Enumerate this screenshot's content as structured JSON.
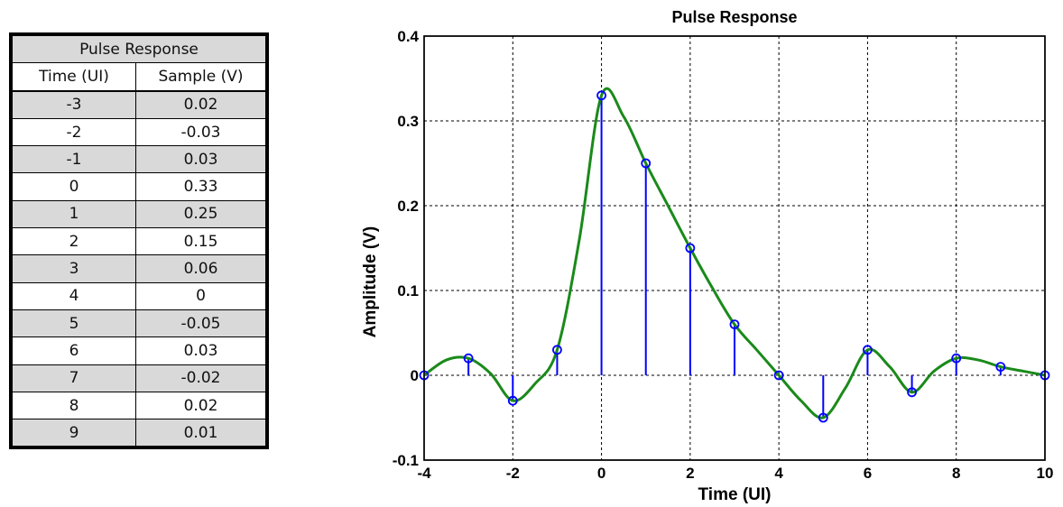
{
  "table": {
    "title": "Pulse Response",
    "col_time": "Time (UI)",
    "col_sample": "Sample (V)",
    "rows": [
      {
        "time": "-3",
        "sample": "0.02"
      },
      {
        "time": "-2",
        "sample": "-0.03"
      },
      {
        "time": "-1",
        "sample": "0.03"
      },
      {
        "time": "0",
        "sample": "0.33"
      },
      {
        "time": "1",
        "sample": "0.25"
      },
      {
        "time": "2",
        "sample": "0.15"
      },
      {
        "time": "3",
        "sample": "0.06"
      },
      {
        "time": "4",
        "sample": "0"
      },
      {
        "time": "5",
        "sample": "-0.05"
      },
      {
        "time": "6",
        "sample": "0.03"
      },
      {
        "time": "7",
        "sample": "-0.02"
      },
      {
        "time": "8",
        "sample": "0.02"
      },
      {
        "time": "9",
        "sample": "0.01"
      }
    ]
  },
  "chart_data": {
    "type": "line",
    "title": "Pulse Response",
    "xlabel": "Time (UI)",
    "ylabel": "Amplitude (V)",
    "xlim": [
      -4,
      10
    ],
    "ylim": [
      -0.1,
      0.4
    ],
    "xticks": [
      -4,
      -2,
      0,
      2,
      4,
      6,
      8,
      10
    ],
    "xtick_labels": [
      "-4",
      "-2",
      "0",
      "2",
      "4",
      "6",
      "8",
      "10"
    ],
    "yticks": [
      -0.1,
      0,
      0.1,
      0.2,
      0.3,
      0.4
    ],
    "ytick_labels": [
      "-0.1",
      "0",
      "0.1",
      "0.2",
      "0.3",
      "0.4"
    ],
    "grid": true,
    "colors": {
      "curve": "#1a8a1a",
      "stem": "#0000ff"
    },
    "series": [
      {
        "kind": "stem",
        "x": [
          -4,
          -3,
          -2,
          -1,
          0,
          1,
          2,
          3,
          4,
          5,
          6,
          7,
          8,
          9,
          10
        ],
        "y": [
          0,
          0.02,
          -0.03,
          0.03,
          0.33,
          0.25,
          0.15,
          0.06,
          0,
          -0.05,
          0.03,
          -0.02,
          0.02,
          0.01,
          0
        ]
      },
      {
        "kind": "line",
        "x": [
          -4,
          -3.5,
          -3,
          -2.5,
          -2,
          -1.5,
          -1,
          -0.5,
          0,
          0.5,
          1,
          1.5,
          2,
          2.5,
          3,
          3.5,
          4,
          4.5,
          5,
          5.5,
          6,
          6.5,
          7,
          7.5,
          8,
          8.5,
          9,
          9.5,
          10
        ],
        "y": [
          0,
          0.018,
          0.02,
          0.002,
          -0.03,
          -0.01,
          0.03,
          0.16,
          0.33,
          0.305,
          0.25,
          0.2,
          0.15,
          0.103,
          0.06,
          0.03,
          0,
          -0.03,
          -0.05,
          -0.015,
          0.03,
          0.01,
          -0.02,
          0.005,
          0.02,
          0.018,
          0.01,
          0.005,
          0
        ]
      }
    ]
  }
}
